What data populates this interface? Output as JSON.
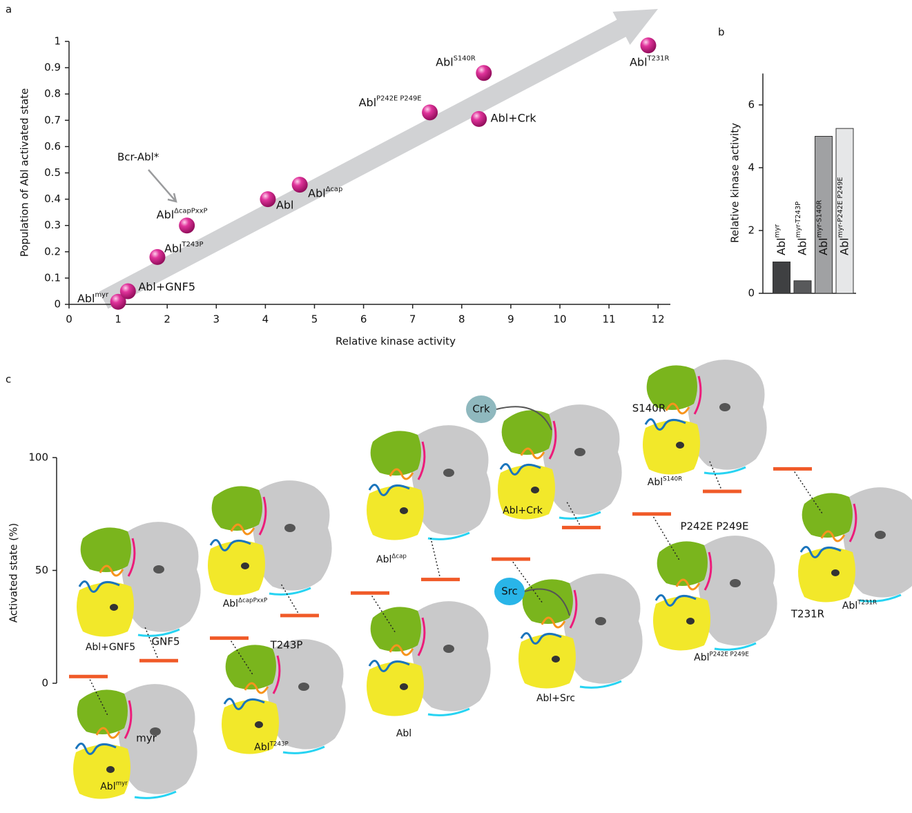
{
  "chart_data": [
    {
      "type": "scatter",
      "panel": "a",
      "xlabel": "Relative kinase activity",
      "ylabel": "Population of Abl activated state",
      "xlim": [
        0,
        12.25
      ],
      "ylim": [
        0,
        1
      ],
      "xticks": [
        0,
        1,
        2,
        3,
        4,
        5,
        6,
        7,
        8,
        9,
        10,
        11,
        12
      ],
      "yticks": [
        0,
        0.1,
        0.2,
        0.3,
        0.4,
        0.5,
        0.6,
        0.7,
        0.8,
        0.9,
        1
      ],
      "color": "#c8157f",
      "annotation": "Bcr-Abl*",
      "points": [
        {
          "name": "Abl",
          "sup": "myr",
          "x": 1.0,
          "y": 0.01
        },
        {
          "name": "Abl+GNF5",
          "x": 1.2,
          "y": 0.05
        },
        {
          "name": "Abl",
          "sup": "T243P",
          "x": 1.8,
          "y": 0.18
        },
        {
          "name": "Abl",
          "sup": "ΔcapPxxP",
          "x": 2.4,
          "y": 0.3
        },
        {
          "name": "Abl",
          "x": 4.05,
          "y": 0.4
        },
        {
          "name": "Abl",
          "sup": "Δcap",
          "x": 4.7,
          "y": 0.455
        },
        {
          "name": "Abl",
          "sup": "P242E P249E",
          "x": 7.35,
          "y": 0.73
        },
        {
          "name": "Abl+Crk",
          "x": 8.35,
          "y": 0.705
        },
        {
          "name": "Abl",
          "sup": "S140R",
          "x": 8.45,
          "y": 0.88
        },
        {
          "name": "Abl",
          "sup": "T231R",
          "x": 11.8,
          "y": 0.985
        }
      ]
    },
    {
      "type": "bar",
      "panel": "b",
      "ylabel": "Relative kinase activity",
      "ylim": [
        0,
        7
      ],
      "yticks": [
        0,
        2,
        4,
        6
      ],
      "bars": [
        {
          "name": "Abl",
          "sup": "myr",
          "value": 1,
          "color": "#3f4042"
        },
        {
          "name": "Abl",
          "sup": "myr-T243P",
          "value": 0.4,
          "color": "#58595b"
        },
        {
          "name": "Abl",
          "sup": "myr-S140R",
          "value": 5,
          "color": "#a0a1a3"
        },
        {
          "name": "Abl",
          "sup": "myr-P242E P249E",
          "value": 5.25,
          "color": "#e6e7e8"
        }
      ]
    },
    {
      "type": "states",
      "panel": "c",
      "ylabel": "Activated state (%)",
      "ylim": [
        0,
        100
      ],
      "yticks": [
        0,
        50,
        100
      ],
      "color": "#f05a28",
      "states": [
        {
          "name": "Abl",
          "sup": "myr",
          "value": 3
        },
        {
          "name": "Abl+GNF5",
          "value": 10
        },
        {
          "name": "Abl",
          "sup": "T243P",
          "value": 20
        },
        {
          "name": "Abl",
          "sup": "ΔcapPxxP",
          "value": 30
        },
        {
          "name": "Abl",
          "value": 40
        },
        {
          "name": "Abl",
          "sup": "Δcap",
          "value": 46
        },
        {
          "name": "Abl+Src",
          "value": 55
        },
        {
          "name": "Abl+Crk",
          "value": 69
        },
        {
          "name": "Abl",
          "sup": "P242E P249E",
          "value": 75
        },
        {
          "name": "Abl",
          "sup": "S140R",
          "value": 85
        },
        {
          "name": "Abl",
          "sup": "T231R",
          "value": 95
        }
      ],
      "annotations": [
        "myr",
        "GNF5",
        "T243P",
        "Src",
        "Crk",
        "P242E P249E",
        "S140R",
        "T231R"
      ]
    }
  ]
}
